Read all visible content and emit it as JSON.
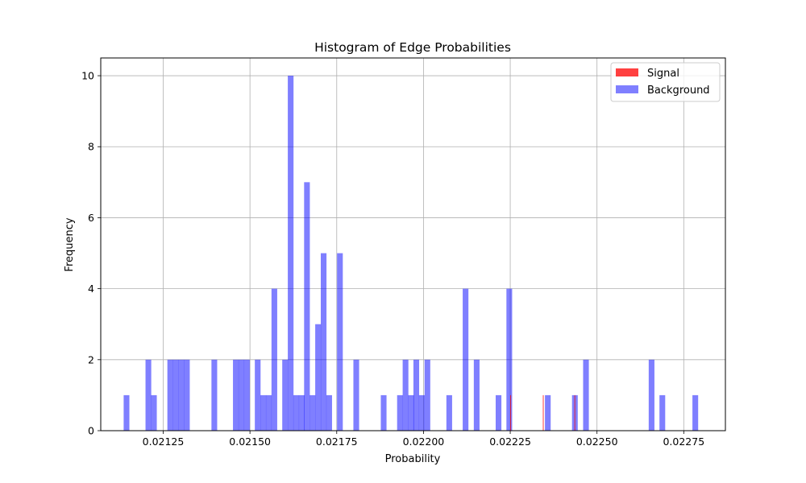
{
  "chart_data": {
    "type": "bar",
    "title": "Histogram of Edge Probabilities",
    "xlabel": "Probability",
    "ylabel": "Frequency",
    "xlim": [
      0.02107,
      0.02287
    ],
    "ylim": [
      0,
      10.5
    ],
    "grid": true,
    "legend_position": "top-right",
    "bin_width": 1.65e-05,
    "x_ticks": [
      {
        "value": 0.02125,
        "label": "0.02125"
      },
      {
        "value": 0.0215,
        "label": "0.02150"
      },
      {
        "value": 0.02175,
        "label": "0.02175"
      },
      {
        "value": 0.022,
        "label": "0.02200"
      },
      {
        "value": 0.02225,
        "label": "0.02225"
      },
      {
        "value": 0.0225,
        "label": "0.02250"
      },
      {
        "value": 0.02275,
        "label": "0.02275"
      }
    ],
    "y_ticks": [
      {
        "value": 0,
        "label": "0"
      },
      {
        "value": 2,
        "label": "2"
      },
      {
        "value": 4,
        "label": "4"
      },
      {
        "value": 6,
        "label": "6"
      },
      {
        "value": 8,
        "label": "8"
      },
      {
        "value": 10,
        "label": "10"
      }
    ],
    "series": [
      {
        "name": "Signal",
        "color": "#ff0000",
        "alpha": 0.75,
        "bin_width": 1.8e-06,
        "x": [
          0.02225,
          0.022344,
          0.022435
        ],
        "values": [
          1,
          1,
          1
        ]
      },
      {
        "name": "Background",
        "color": "#0000ff",
        "alpha": 0.5,
        "x": [
          0.021136,
          0.021199,
          0.021215,
          0.021262,
          0.021278,
          0.021294,
          0.02131,
          0.021389,
          0.021451,
          0.021467,
          0.021483,
          0.021514,
          0.02153,
          0.021546,
          0.021562,
          0.021593,
          0.021609,
          0.021625,
          0.021641,
          0.021656,
          0.021672,
          0.021688,
          0.021704,
          0.02172,
          0.021751,
          0.021798,
          0.021877,
          0.021924,
          0.02194,
          0.021956,
          0.021971,
          0.021987,
          0.022003,
          0.022066,
          0.022113,
          0.022145,
          0.022208,
          0.022239,
          0.02235,
          0.022428,
          0.02246,
          0.022649,
          0.02268,
          0.022775
        ],
        "values": [
          1,
          2,
          1,
          2,
          2,
          2,
          2,
          2,
          2,
          2,
          2,
          2,
          1,
          1,
          4,
          2,
          10,
          1,
          1,
          7,
          1,
          3,
          5,
          1,
          5,
          2,
          1,
          1,
          2,
          1,
          2,
          1,
          2,
          1,
          4,
          2,
          1,
          4,
          1,
          1,
          2,
          2,
          1,
          1
        ]
      }
    ]
  }
}
